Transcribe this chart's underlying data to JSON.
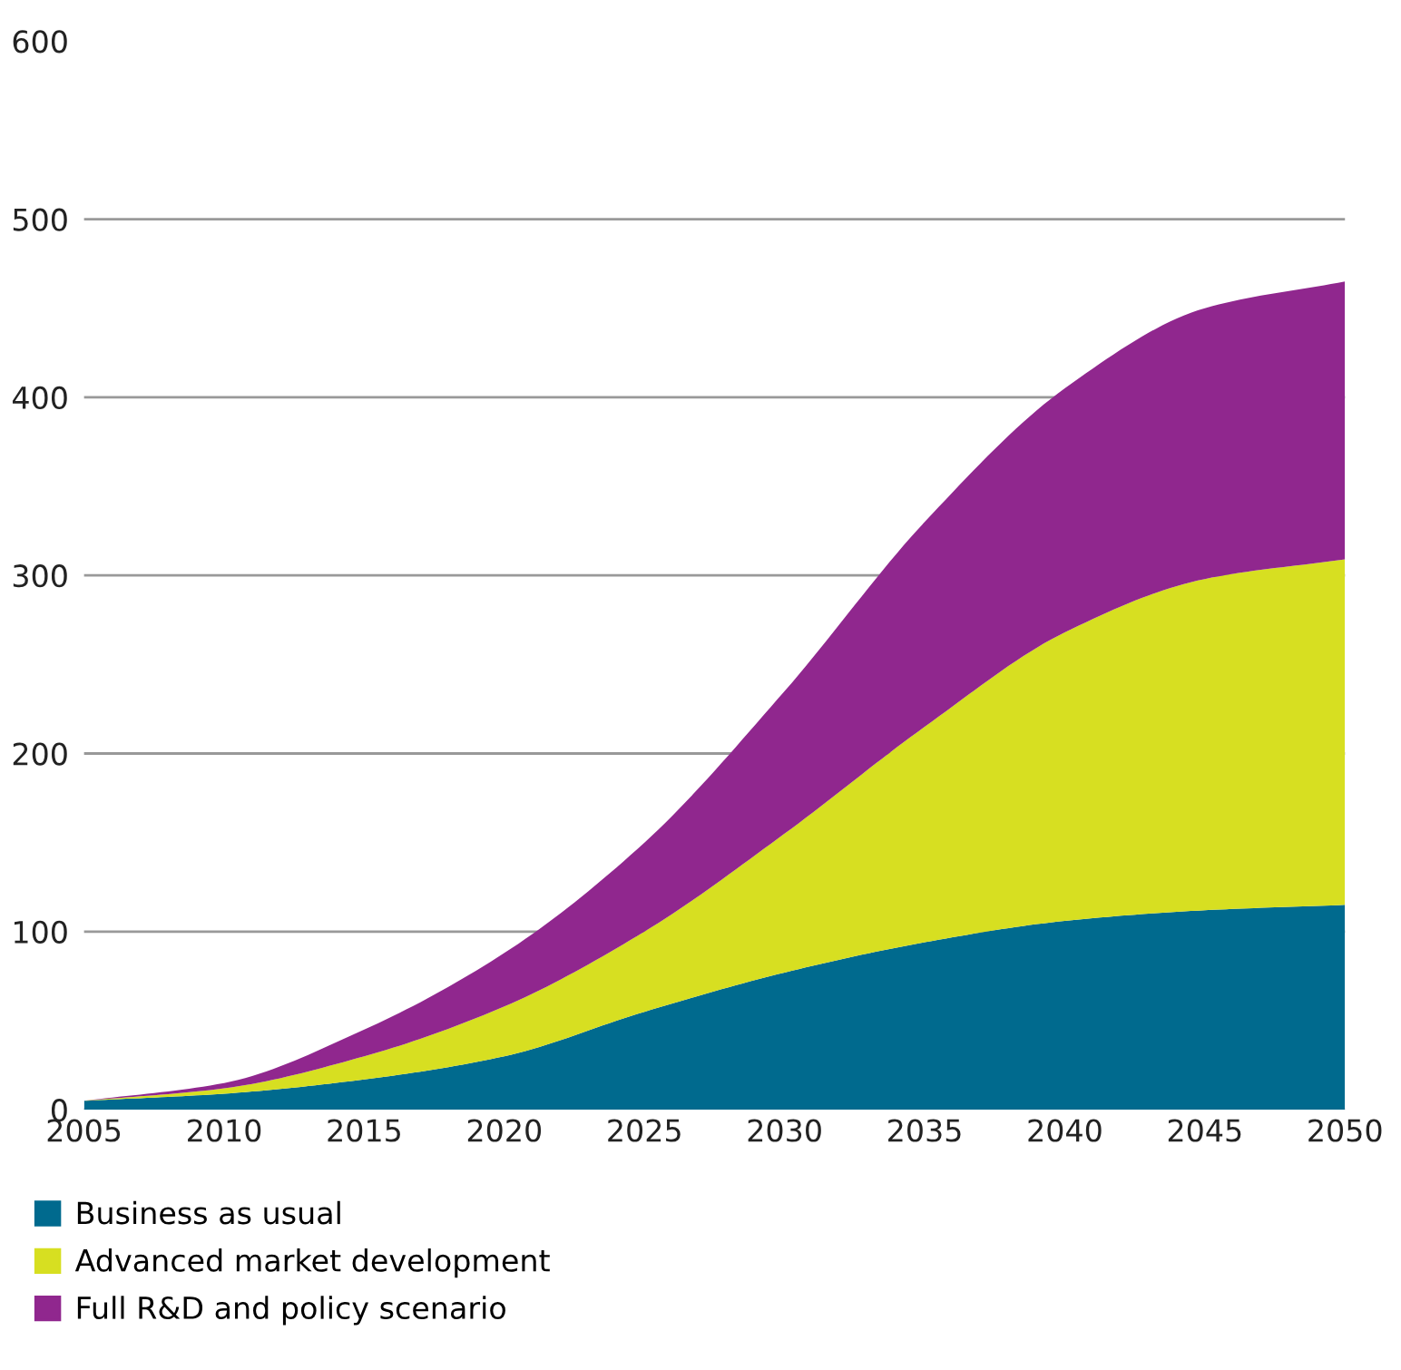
{
  "chart_data": {
    "type": "area",
    "stacked": true,
    "x": [
      2005,
      2010,
      2015,
      2020,
      2025,
      2030,
      2035,
      2040,
      2045,
      2050
    ],
    "series": [
      {
        "name": "Business as usual",
        "color": "#006a8e",
        "values": [
          5,
          9,
          17,
          30,
          55,
          77,
          94,
          106,
          112,
          115
        ]
      },
      {
        "name": "Advanced market development",
        "color": "#d7df21",
        "values": [
          0,
          3,
          13,
          28,
          45,
          78,
          121,
          162,
          186,
          194
        ]
      },
      {
        "name": "Full R&D and policy scenario",
        "color": "#90278e",
        "values": [
          0,
          3,
          15,
          30,
          50,
          80,
          115,
          137,
          152,
          156
        ]
      }
    ],
    "xlim": [
      2005,
      2050
    ],
    "xticks": [
      2005,
      2010,
      2015,
      2020,
      2025,
      2030,
      2035,
      2040,
      2045,
      2050
    ],
    "ylim": [
      0,
      600
    ],
    "yticks": [
      0,
      100,
      200,
      300,
      400,
      500,
      600
    ],
    "grid": "y",
    "legend": "bottom"
  }
}
